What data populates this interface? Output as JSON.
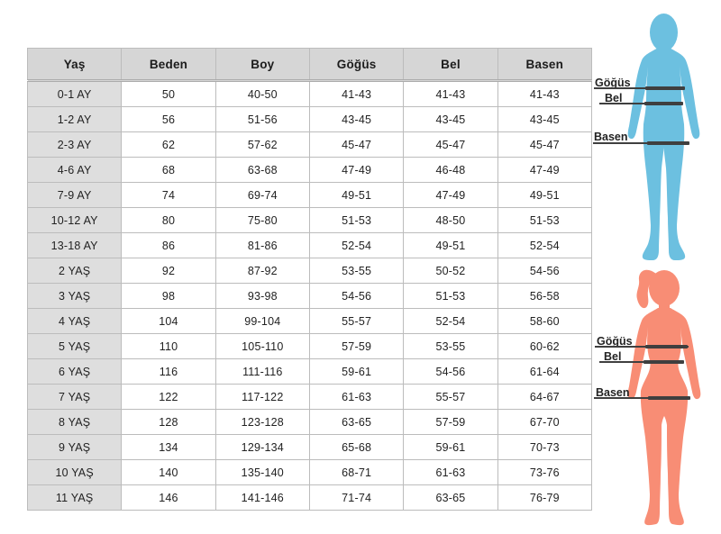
{
  "table": {
    "columns": [
      "Yaş",
      "Beden",
      "Boy",
      "Göğüs",
      "Bel",
      "Basen"
    ],
    "rows": [
      [
        "0-1 AY",
        "50",
        "40-50",
        "41-43",
        "41-43",
        "41-43"
      ],
      [
        "1-2 AY",
        "56",
        "51-56",
        "43-45",
        "43-45",
        "43-45"
      ],
      [
        "2-3 AY",
        "62",
        "57-62",
        "45-47",
        "45-47",
        "45-47"
      ],
      [
        "4-6 AY",
        "68",
        "63-68",
        "47-49",
        "46-48",
        "47-49"
      ],
      [
        "7-9 AY",
        "74",
        "69-74",
        "49-51",
        "47-49",
        "49-51"
      ],
      [
        "10-12 AY",
        "80",
        "75-80",
        "51-53",
        "48-50",
        "51-53"
      ],
      [
        "13-18 AY",
        "86",
        "81-86",
        "52-54",
        "49-51",
        "52-54"
      ],
      [
        "2 YAŞ",
        "92",
        "87-92",
        "53-55",
        "50-52",
        "54-56"
      ],
      [
        "3 YAŞ",
        "98",
        "93-98",
        "54-56",
        "51-53",
        "56-58"
      ],
      [
        "4 YAŞ",
        "104",
        "99-104",
        "55-57",
        "52-54",
        "58-60"
      ],
      [
        "5 YAŞ",
        "110",
        "105-110",
        "57-59",
        "53-55",
        "60-62"
      ],
      [
        "6 YAŞ",
        "116",
        "111-116",
        "59-61",
        "54-56",
        "61-64"
      ],
      [
        "7 YAŞ",
        "122",
        "117-122",
        "61-63",
        "55-57",
        "64-67"
      ],
      [
        "8 YAŞ",
        "128",
        "123-128",
        "63-65",
        "57-59",
        "67-70"
      ],
      [
        "9 YAŞ",
        "134",
        "129-134",
        "65-68",
        "59-61",
        "70-73"
      ],
      [
        "10 YAŞ",
        "140",
        "135-140",
        "68-71",
        "61-63",
        "73-76"
      ],
      [
        "11 YAŞ",
        "146",
        "141-146",
        "71-74",
        "63-65",
        "76-79"
      ]
    ]
  },
  "figures": {
    "child": {
      "color": "#6cc0e0",
      "labels": {
        "chest": "Göğüs",
        "waist": "Bel",
        "hips": "Basen"
      }
    },
    "woman": {
      "color": "#f88d75",
      "labels": {
        "chest": "Göğüs",
        "waist": "Bel",
        "hips": "Basen"
      }
    }
  },
  "colors": {
    "header_bg": "#d6d6d6",
    "row_label_bg": "#dedede",
    "border": "#bcbcbc",
    "outer_border": "#9f9f9f",
    "measure_line": "#3f3f3f",
    "text": "#1c1c1c",
    "page_bg": "#ffffff"
  }
}
